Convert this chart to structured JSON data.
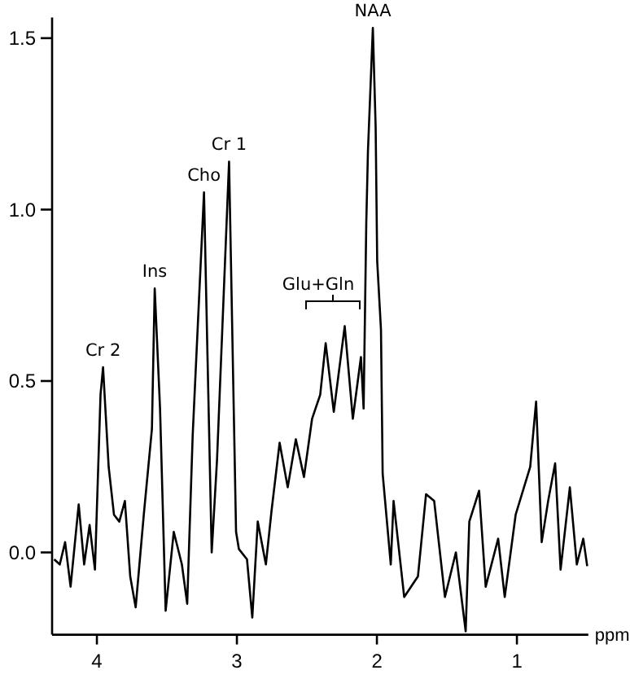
{
  "chart_data": {
    "type": "line",
    "xlabel": "ppm",
    "xlim": [
      4.32,
      0.49
    ],
    "ylim": [
      -0.24,
      1.56
    ],
    "xticks": [
      4,
      3,
      2,
      1
    ],
    "yticks": [
      {
        "value": 0,
        "label": "0.0"
      },
      {
        "value": 0.5,
        "label": "0.5"
      },
      {
        "value": 1,
        "label": "1.0"
      },
      {
        "value": 1.5,
        "label": "1.5"
      }
    ],
    "grid": false,
    "marker": "none",
    "line_style": "solid",
    "series": [
      {
        "color": "#000000",
        "x": [
          4.305,
          4.265,
          4.227,
          4.188,
          4.13,
          4.091,
          4.052,
          4.014,
          3.974,
          3.956,
          3.916,
          3.878,
          3.84,
          3.8,
          3.762,
          3.723,
          3.665,
          3.607,
          3.587,
          3.549,
          3.509,
          3.451,
          3.393,
          3.355,
          3.316,
          3.235,
          3.18,
          3.142,
          3.056,
          3.006,
          2.986,
          2.928,
          2.89,
          2.851,
          2.793,
          2.753,
          2.695,
          2.637,
          2.579,
          2.521,
          2.463,
          2.405,
          2.366,
          2.308,
          2.23,
          2.172,
          2.114,
          2.095,
          2.076,
          2.064,
          2.029,
          2.009,
          1.998,
          1.971,
          1.959,
          1.901,
          1.881,
          1.805,
          1.707,
          1.649,
          1.591,
          1.514,
          1.436,
          1.366,
          1.34,
          1.27,
          1.223,
          1.134,
          1.087,
          1.009,
          0.905,
          0.863,
          0.823,
          0.777,
          0.727,
          0.688,
          0.622,
          0.572,
          0.526,
          0.498
        ],
        "values": [
          -0.02,
          -0.035,
          0.03,
          -0.1,
          0.14,
          -0.035,
          0.08,
          -0.05,
          0.46,
          0.54,
          0.25,
          0.11,
          0.09,
          0.15,
          -0.07,
          -0.16,
          0.11,
          0.36,
          0.77,
          0.42,
          -0.17,
          0.06,
          -0.035,
          -0.15,
          0.34,
          1.05,
          0.0,
          0.27,
          1.14,
          0.06,
          0.01,
          -0.02,
          -0.19,
          0.09,
          -0.035,
          0.12,
          0.32,
          0.19,
          0.33,
          0.22,
          0.39,
          0.46,
          0.61,
          0.41,
          0.66,
          0.39,
          0.57,
          0.42,
          0.96,
          1.17,
          1.53,
          1.24,
          0.85,
          0.65,
          0.23,
          -0.035,
          0.15,
          -0.13,
          -0.07,
          0.17,
          0.15,
          -0.13,
          0.0,
          -0.23,
          0.09,
          0.18,
          -0.1,
          0.04,
          -0.13,
          0.11,
          0.25,
          0.44,
          0.03,
          0.15,
          0.26,
          -0.05,
          0.19,
          -0.035,
          0.04,
          -0.04
        ]
      }
    ],
    "annotations": [
      {
        "text": "Cr 2",
        "x": 3.956,
        "y": 0.54
      },
      {
        "text": "Ins",
        "x": 3.587,
        "y": 0.77
      },
      {
        "text": "Cho",
        "x": 3.235,
        "y": 1.05
      },
      {
        "text": "Cr 1",
        "x": 3.056,
        "y": 1.14
      },
      "Glu+Gln",
      {
        "text": "NAA",
        "x": 2.029,
        "y": 1.53
      }
    ]
  }
}
